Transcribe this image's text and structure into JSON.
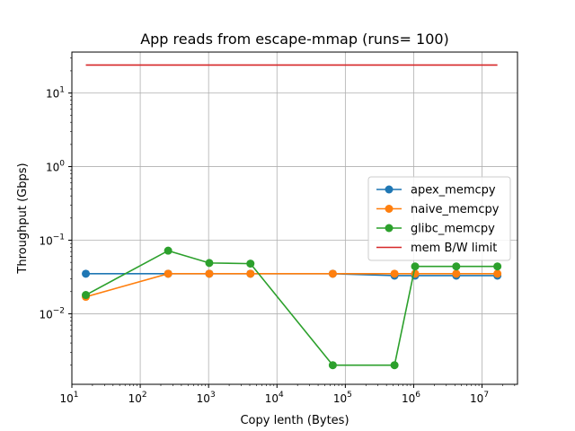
{
  "chart_data": {
    "type": "line",
    "title": "App reads from escape-mmap (runs= 100)",
    "xlabel": "Copy lenth (Bytes)",
    "ylabel": "Throughput (Gbps)",
    "xscale": "log",
    "yscale": "log",
    "xlim": [
      10,
      33000000
    ],
    "ylim": [
      0.0011,
      36
    ],
    "grid": true,
    "legend": "center-right",
    "xticks": [
      {
        "base": "10",
        "exp": "1",
        "value": 10
      },
      {
        "base": "10",
        "exp": "2",
        "value": 100
      },
      {
        "base": "10",
        "exp": "3",
        "value": 1000
      },
      {
        "base": "10",
        "exp": "4",
        "value": 10000
      },
      {
        "base": "10",
        "exp": "5",
        "value": 100000
      },
      {
        "base": "10",
        "exp": "6",
        "value": 1000000
      },
      {
        "base": "10",
        "exp": "7",
        "value": 10000000
      }
    ],
    "yticks": [
      {
        "base": "10",
        "exp": "−2",
        "value": 0.01
      },
      {
        "base": "10",
        "exp": "−1",
        "value": 0.1
      },
      {
        "base": "10",
        "exp": "0",
        "value": 1
      },
      {
        "base": "10",
        "exp": "1",
        "value": 10
      }
    ],
    "series": [
      {
        "name": "apex_memcpy",
        "color": "#1f77b4",
        "marker": "circle",
        "x": [
          16,
          256,
          1024,
          4096,
          65536,
          524288,
          1048576,
          4194304,
          16777216
        ],
        "y": [
          0.035,
          0.035,
          0.035,
          0.035,
          0.035,
          0.033,
          0.033,
          0.033,
          0.033
        ]
      },
      {
        "name": "naive_memcpy",
        "color": "#ff7f0e",
        "marker": "circle",
        "x": [
          16,
          256,
          1024,
          4096,
          65536,
          524288,
          1048576,
          4194304,
          16777216
        ],
        "y": [
          0.017,
          0.035,
          0.035,
          0.035,
          0.035,
          0.035,
          0.035,
          0.035,
          0.035
        ]
      },
      {
        "name": "glibc_memcpy",
        "color": "#2ca02c",
        "marker": "circle",
        "x": [
          16,
          256,
          1024,
          4096,
          65536,
          524288,
          1048576,
          4194304,
          16777216
        ],
        "y": [
          0.018,
          0.072,
          0.049,
          0.048,
          0.002,
          0.002,
          0.044,
          0.044,
          0.044
        ]
      },
      {
        "name": "mem B/W limit",
        "color": "#d62728",
        "marker": "none",
        "x": [
          16,
          16777216
        ],
        "y": [
          24,
          24
        ]
      }
    ]
  }
}
